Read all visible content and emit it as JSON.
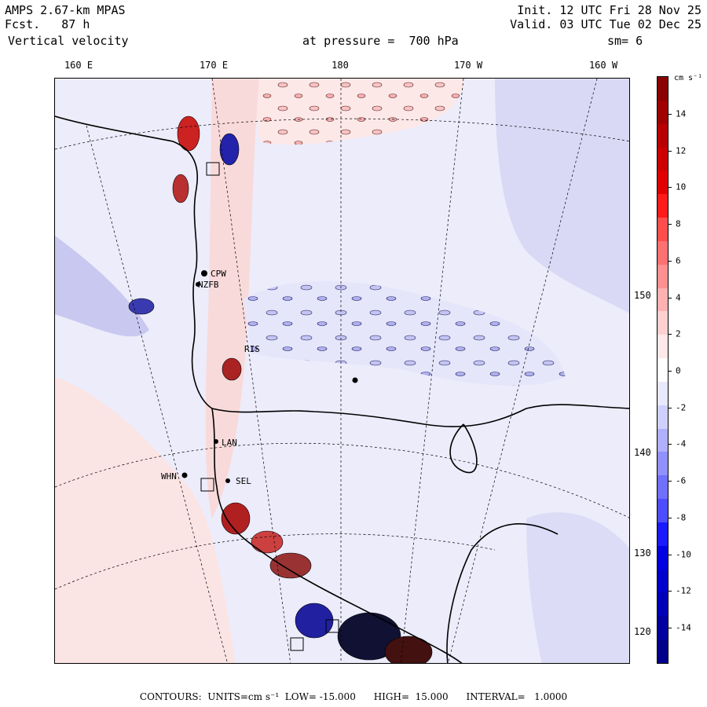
{
  "header": {
    "model": "AMPS 2.67-km MPAS",
    "fcst": "Fcst.   87 h",
    "field": "Vertical velocity",
    "init": "Init. 12 UTC Fri 28 Nov 25",
    "valid": "Valid. 03 UTC Tue 02 Dec 25",
    "pressure": "at pressure =  700 hPa",
    "smoothing": "sm= 6"
  },
  "axes": {
    "lon_labels": [
      "160 E",
      "170 E",
      "180",
      "170 W",
      "160 W"
    ],
    "lat_labels": [
      "150 W",
      "140 W",
      "130 W",
      "120 W"
    ]
  },
  "stations": [
    "CPW",
    "NZFB",
    "LAN",
    "WHN",
    "SEL",
    "RIS"
  ],
  "colorbar": {
    "units": "cm s⁻¹",
    "tick_labels": [
      "14",
      "12",
      "10",
      "8",
      "6",
      "4",
      "2",
      "0",
      "-2",
      "-4",
      "-6",
      "-8",
      "-10",
      "-12",
      "-14"
    ],
    "colors": [
      "#8b0000",
      "#a00000",
      "#b80000",
      "#cc0000",
      "#e00000",
      "#ff1a1a",
      "#ff4d4d",
      "#ff7070",
      "#ff9090",
      "#ffb0b0",
      "#ffd0d0",
      "#ffe8e8",
      "#ffffff",
      "#e8e8ff",
      "#d0d0ff",
      "#b0b0ff",
      "#9090ff",
      "#7070ff",
      "#4d4dff",
      "#1a1aff",
      "#0000e0",
      "#0000cc",
      "#0000b8",
      "#0000a0",
      "#00008b"
    ]
  },
  "footer": {
    "text": "CONTOURS:  UNITS=cm s⁻¹  LOW= -15.000      HIGH=  15.000      INTERVAL=   1.0000"
  }
}
